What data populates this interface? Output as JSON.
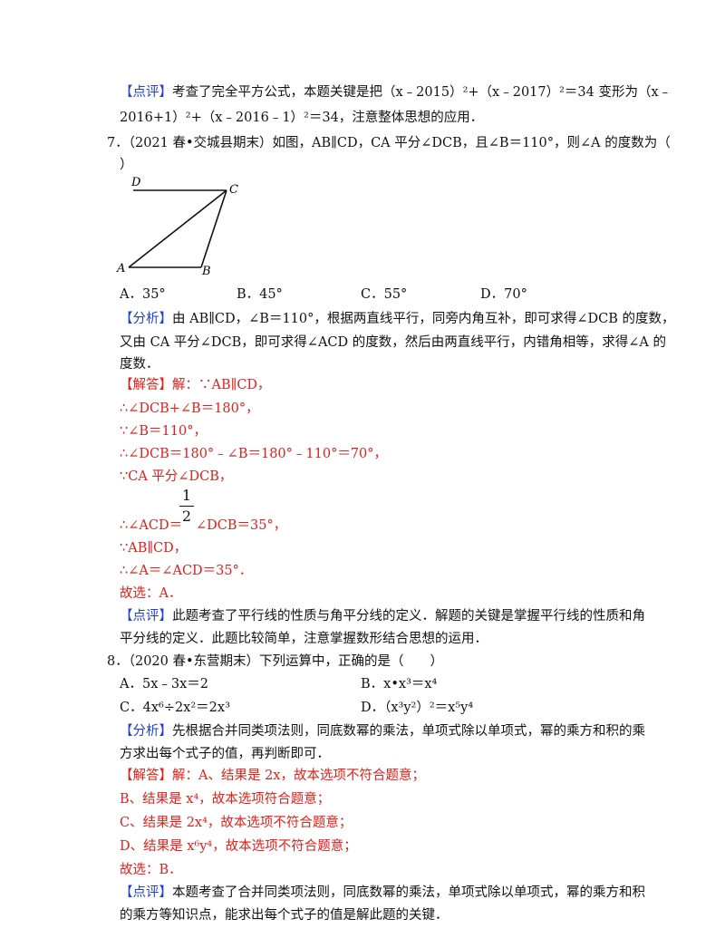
{
  "review1": {
    "tag": "【点评】",
    "line1": "考查了完全平方公式，本题关键是把（x﹣2015）²+（x﹣2017）²＝34 变形为（x﹣",
    "line2": "2016+1）²+（x﹣2016﹣1）²＝34，注意整体思想的应用．"
  },
  "q7": {
    "stem1": "7．（2021 春•交城县期末）如图，AB∥CD，CA 平分∠DCB，且∠B＝110°，则∠A 的度数为（",
    "stem2": "）",
    "figure": {
      "D": "D",
      "C": "C",
      "A": "A",
      "B": "B"
    },
    "options": [
      "A．35°",
      "B．45°",
      "C．55°",
      "D．70°"
    ],
    "analysis_tag": "【分析】",
    "analysis1": "由 AB∥CD，∠B＝110°，根据两直线平行，同旁内角互补，即可求得∠DCB 的度数，",
    "analysis2": "又由 CA 平分∠DCB，即可求得∠ACD 的度数，然后由两直线平行，内错角相等，求得∠A 的",
    "analysis3": "度数．",
    "answer_tag": "【解答】",
    "answer_lines": [
      "解：∵AB∥CD，",
      "∴∠DCB+∠B＝180°，",
      "∵∠B＝110°，",
      "∴∠DCB＝180°﹣∠B＝180°﹣110°＝70°，",
      "∵CA 平分∠DCB，",
      "∴∠ACD＝",
      "∠DCB＝35°，",
      "∵AB∥CD，",
      "∴∠A＝∠ACD＝35°．",
      "故选：A．"
    ],
    "frac_num": "1",
    "frac_den": "2",
    "review_tag": "【点评】",
    "review1": "此题考查了平行线的性质与角平分线的定义．解题的关键是掌握平行线的性质和角",
    "review2": "平分线的定义．此题比较简单，注意掌握数形结合思想的运用．"
  },
  "q8": {
    "stem": "8．（2020 春•东营期末）下列运算中，正确的是（　　）",
    "optA": "A．5x﹣3x＝2",
    "optB": "B．x•x³＝x⁴",
    "optC": "C．4x⁶÷2x²＝2x³",
    "optD": "D．（x³y²）²＝x⁵y⁴",
    "analysis_tag": "【分析】",
    "analysis1": "先根据合并同类项法则，同底数幂的乘法，单项式除以单项式，幂的乘方和积的乘",
    "analysis2": "方求出每个式子的值，再判断即可．",
    "answer_tag": "【解答】",
    "answer_lines": [
      "解：A、结果是 2x，故本选项不符合题意；",
      "B、结果是 x⁴，故本选项符合题意；",
      "C、结果是 2x⁴，故本选项不符合题意；",
      "D、结果是 x⁶y⁴，故本选项不符合题意；",
      "故选：B．"
    ],
    "review_tag": "【点评】",
    "review1": "本题考查了合并同类项法则，同底数幂的乘法，单项式除以单项式，幂的乘方和积",
    "review2": "的乘方等知识点，能求出每个式子的值是解此题的关键．"
  }
}
